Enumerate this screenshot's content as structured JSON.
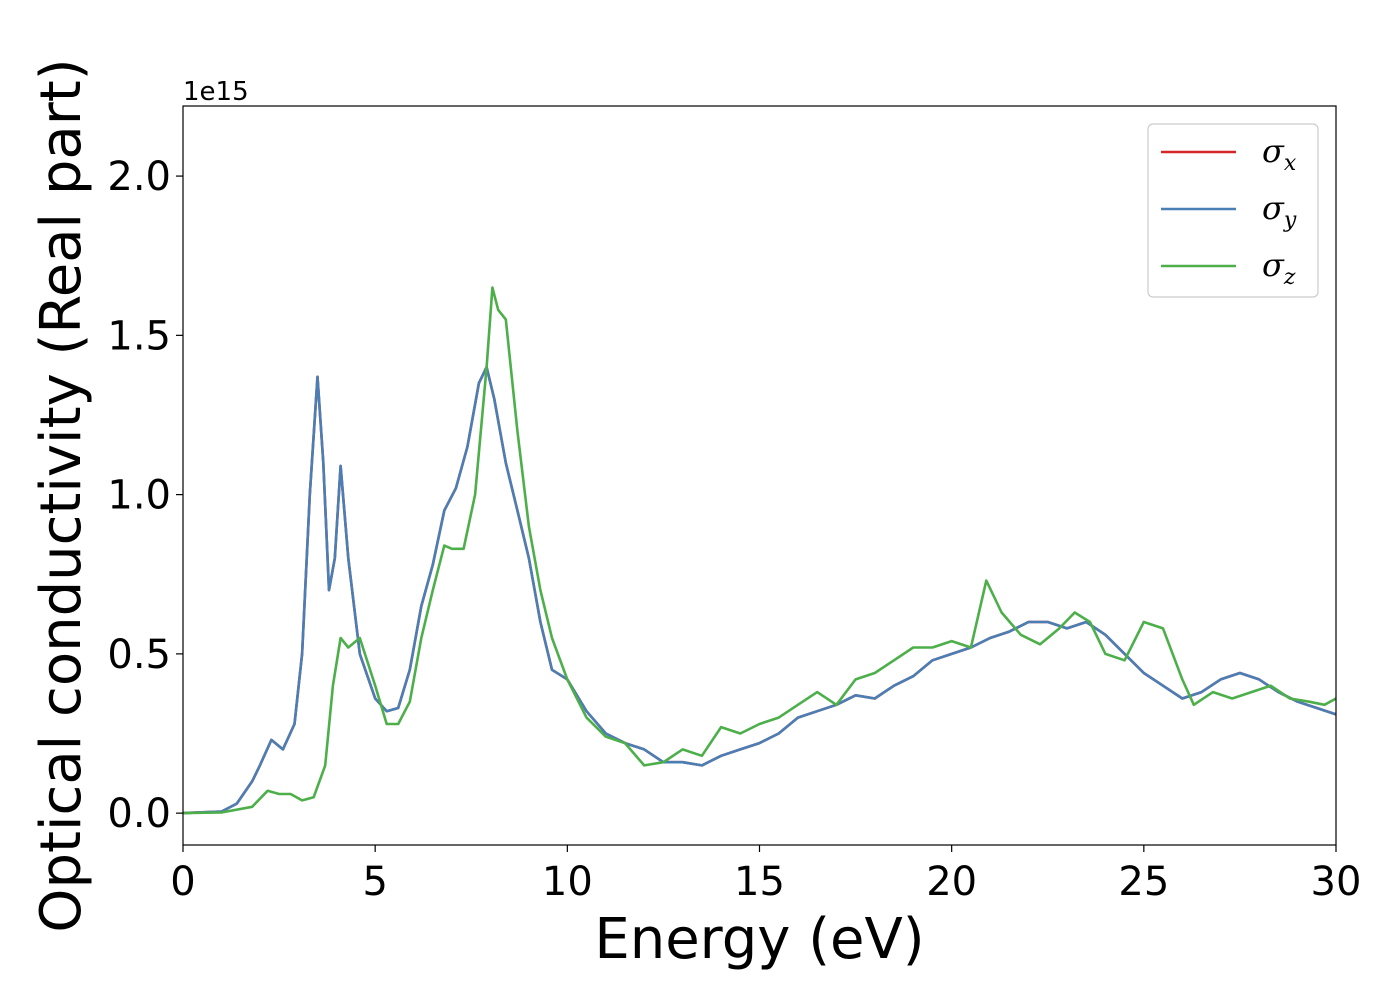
{
  "chart_data": {
    "type": "line",
    "title": "",
    "xlabel": "Energy (eV)",
    "ylabel": "Optical conductivity (Real part)",
    "y_offset_label": "1e15",
    "xlim": [
      0,
      30
    ],
    "ylim": [
      -0.1,
      2.22
    ],
    "x_ticks": [
      0,
      5,
      10,
      15,
      20,
      25,
      30
    ],
    "x_tick_labels": [
      "0",
      "5",
      "10",
      "15",
      "20",
      "25",
      "30"
    ],
    "y_ticks": [
      0.0,
      0.5,
      1.0,
      1.5,
      2.0
    ],
    "y_tick_labels": [
      "0.0",
      "0.5",
      "1.0",
      "1.5",
      "2.0"
    ],
    "grid": false,
    "legend": {
      "placement": "top-right",
      "entries": [
        {
          "symbol": "σ",
          "subscript": "x",
          "color": "#d62728"
        },
        {
          "symbol": "σ",
          "subscript": "y",
          "color": "#4a7fb5"
        },
        {
          "symbol": "σ",
          "subscript": "z",
          "color": "#4daf4a"
        }
      ]
    },
    "series": [
      {
        "legend_index": 0,
        "color": "#d62728",
        "x": [
          0,
          1,
          1.4,
          1.8,
          2.0,
          2.3,
          2.6,
          2.9,
          3.1,
          3.3,
          3.5,
          3.65,
          3.8,
          3.95,
          4.1,
          4.3,
          4.6,
          5.0,
          5.3,
          5.6,
          5.9,
          6.2,
          6.5,
          6.8,
          7.1,
          7.4,
          7.7,
          7.9,
          8.1,
          8.4,
          8.7,
          9.0,
          9.3,
          9.6,
          10.0,
          10.5,
          11.0,
          11.5,
          12.0,
          12.5,
          13.0,
          13.5,
          14.0,
          14.5,
          15.0,
          15.5,
          16.0,
          16.5,
          17.0,
          17.5,
          18.0,
          18.5,
          19.0,
          19.5,
          20.0,
          20.5,
          21.0,
          21.5,
          22.0,
          22.5,
          23.0,
          23.5,
          24.0,
          24.5,
          25.0,
          25.5,
          26.0,
          26.5,
          27.0,
          27.5,
          28.0,
          28.5,
          29.0,
          29.5,
          30.0
        ],
        "values": [
          0,
          0.005,
          0.03,
          0.1,
          0.15,
          0.23,
          0.2,
          0.28,
          0.5,
          1.0,
          1.37,
          1.1,
          0.7,
          0.8,
          1.09,
          0.8,
          0.5,
          0.36,
          0.32,
          0.33,
          0.45,
          0.65,
          0.78,
          0.95,
          1.02,
          1.15,
          1.35,
          1.4,
          1.3,
          1.1,
          0.95,
          0.8,
          0.6,
          0.45,
          0.42,
          0.32,
          0.25,
          0.22,
          0.2,
          0.16,
          0.16,
          0.15,
          0.18,
          0.2,
          0.22,
          0.25,
          0.3,
          0.32,
          0.34,
          0.37,
          0.36,
          0.4,
          0.43,
          0.48,
          0.5,
          0.52,
          0.55,
          0.57,
          0.6,
          0.6,
          0.58,
          0.6,
          0.56,
          0.5,
          0.44,
          0.4,
          0.36,
          0.38,
          0.42,
          0.44,
          0.42,
          0.38,
          0.35,
          0.33,
          0.31
        ]
      },
      {
        "legend_index": 1,
        "color": "#4a7fb5",
        "x": [
          0,
          1,
          1.4,
          1.8,
          2.0,
          2.3,
          2.6,
          2.9,
          3.1,
          3.3,
          3.5,
          3.65,
          3.8,
          3.95,
          4.1,
          4.3,
          4.6,
          5.0,
          5.3,
          5.6,
          5.9,
          6.2,
          6.5,
          6.8,
          7.1,
          7.4,
          7.7,
          7.9,
          8.1,
          8.4,
          8.7,
          9.0,
          9.3,
          9.6,
          10.0,
          10.5,
          11.0,
          11.5,
          12.0,
          12.5,
          13.0,
          13.5,
          14.0,
          14.5,
          15.0,
          15.5,
          16.0,
          16.5,
          17.0,
          17.5,
          18.0,
          18.5,
          19.0,
          19.5,
          20.0,
          20.5,
          21.0,
          21.5,
          22.0,
          22.5,
          23.0,
          23.5,
          24.0,
          24.5,
          25.0,
          25.5,
          26.0,
          26.5,
          27.0,
          27.5,
          28.0,
          28.5,
          29.0,
          29.5,
          30.0
        ],
        "values": [
          0,
          0.005,
          0.03,
          0.1,
          0.15,
          0.23,
          0.2,
          0.28,
          0.5,
          1.0,
          1.37,
          1.1,
          0.7,
          0.8,
          1.09,
          0.8,
          0.5,
          0.36,
          0.32,
          0.33,
          0.45,
          0.65,
          0.78,
          0.95,
          1.02,
          1.15,
          1.35,
          1.4,
          1.3,
          1.1,
          0.95,
          0.8,
          0.6,
          0.45,
          0.42,
          0.32,
          0.25,
          0.22,
          0.2,
          0.16,
          0.16,
          0.15,
          0.18,
          0.2,
          0.22,
          0.25,
          0.3,
          0.32,
          0.34,
          0.37,
          0.36,
          0.4,
          0.43,
          0.48,
          0.5,
          0.52,
          0.55,
          0.57,
          0.6,
          0.6,
          0.58,
          0.6,
          0.56,
          0.5,
          0.44,
          0.4,
          0.36,
          0.38,
          0.42,
          0.44,
          0.42,
          0.38,
          0.35,
          0.33,
          0.31
        ]
      },
      {
        "legend_index": 2,
        "color": "#4daf4a",
        "x": [
          0,
          1,
          1.8,
          2.2,
          2.5,
          2.8,
          3.1,
          3.4,
          3.7,
          3.9,
          4.1,
          4.3,
          4.6,
          5.0,
          5.3,
          5.6,
          5.9,
          6.2,
          6.5,
          6.8,
          7.0,
          7.3,
          7.6,
          7.9,
          8.05,
          8.2,
          8.4,
          8.7,
          9.0,
          9.3,
          9.6,
          10.0,
          10.5,
          11.0,
          11.5,
          12.0,
          12.5,
          13.0,
          13.5,
          14.0,
          14.5,
          15.0,
          15.5,
          16.0,
          16.5,
          17.0,
          17.5,
          18.0,
          18.5,
          19.0,
          19.5,
          20.0,
          20.5,
          20.9,
          21.3,
          21.8,
          22.3,
          22.8,
          23.2,
          23.6,
          24.0,
          24.5,
          25.0,
          25.5,
          26.0,
          26.3,
          26.8,
          27.3,
          27.8,
          28.3,
          28.8,
          29.3,
          29.7,
          30.0
        ],
        "values": [
          0,
          0.002,
          0.02,
          0.07,
          0.06,
          0.06,
          0.04,
          0.05,
          0.15,
          0.4,
          0.55,
          0.52,
          0.55,
          0.4,
          0.28,
          0.28,
          0.35,
          0.55,
          0.7,
          0.84,
          0.83,
          0.83,
          1.0,
          1.4,
          1.65,
          1.58,
          1.55,
          1.2,
          0.9,
          0.7,
          0.55,
          0.42,
          0.3,
          0.24,
          0.22,
          0.15,
          0.16,
          0.2,
          0.18,
          0.27,
          0.25,
          0.28,
          0.3,
          0.34,
          0.38,
          0.34,
          0.42,
          0.44,
          0.48,
          0.52,
          0.52,
          0.54,
          0.52,
          0.73,
          0.63,
          0.56,
          0.53,
          0.58,
          0.63,
          0.6,
          0.5,
          0.48,
          0.6,
          0.58,
          0.42,
          0.34,
          0.38,
          0.36,
          0.38,
          0.4,
          0.36,
          0.35,
          0.34,
          0.36
        ]
      }
    ]
  }
}
